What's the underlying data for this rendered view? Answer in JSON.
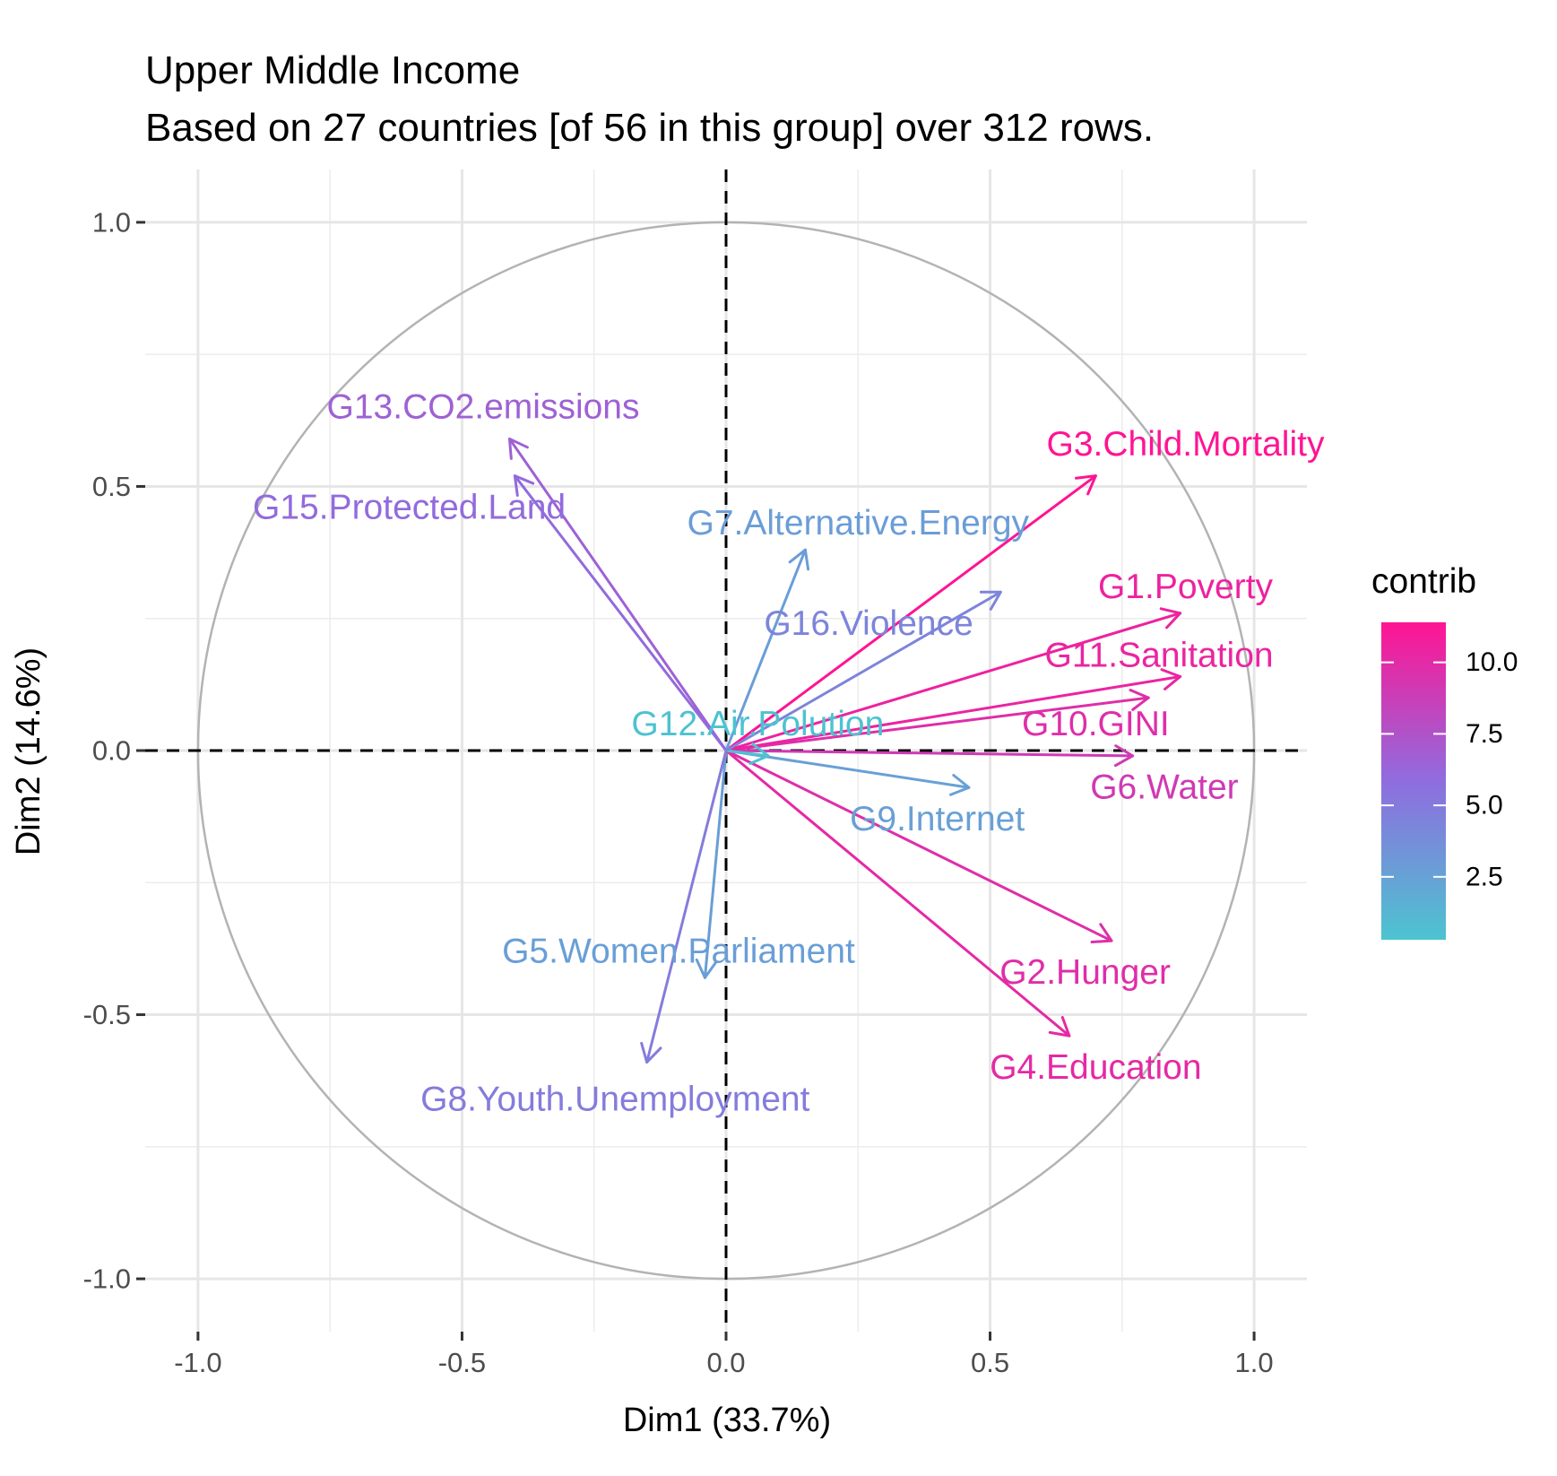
{
  "chart_data": {
    "type": "scatter",
    "subtype": "pca-variables-correlation-circle",
    "title": "Upper Middle Income",
    "subtitle": "Based on 27 countries [of 56 in this group] over 312 rows.",
    "xlabel": "Dim1 (33.7%)",
    "ylabel": "Dim2 (14.6%)",
    "xlim": [
      -1.1,
      1.1
    ],
    "ylim": [
      -1.1,
      1.1
    ],
    "x_ticks": [
      {
        "value": -1.0,
        "label": "-1.0"
      },
      {
        "value": -0.5,
        "label": "-0.5"
      },
      {
        "value": 0.0,
        "label": "0.0"
      },
      {
        "value": 0.5,
        "label": "0.5"
      },
      {
        "value": 1.0,
        "label": "1.0"
      }
    ],
    "y_ticks": [
      {
        "value": 1.0,
        "label": "1.0"
      },
      {
        "value": 0.5,
        "label": "0.5"
      },
      {
        "value": 0.0,
        "label": "0.0"
      },
      {
        "value": -0.5,
        "label": "-0.5"
      },
      {
        "value": -1.0,
        "label": "-1.0"
      }
    ],
    "grid": true,
    "unit_circle": true,
    "legend": {
      "title": "contrib",
      "placement": "right",
      "color_low": "#4cc4d0",
      "color_mid": "#8f6ddf",
      "color_high": "#ff1493",
      "range": [
        0.3,
        11.4
      ],
      "ticks": [
        {
          "value": 10.0,
          "label": "10.0"
        },
        {
          "value": 7.5,
          "label": "7.5"
        },
        {
          "value": 5.0,
          "label": "5.0"
        },
        {
          "value": 2.5,
          "label": "2.5"
        }
      ]
    },
    "variables": [
      {
        "name": "G1.Poverty",
        "x": 0.86,
        "y": 0.26,
        "contrib": 10.5,
        "label_x": 0.87,
        "label_y": 0.31
      },
      {
        "name": "G2.Hunger",
        "x": 0.73,
        "y": -0.36,
        "contrib": 9.8,
        "label_x": 0.68,
        "label_y": -0.42
      },
      {
        "name": "G3.Child.Mortality",
        "x": 0.7,
        "y": 0.52,
        "contrib": 11.4,
        "label_x": 0.87,
        "label_y": 0.58
      },
      {
        "name": "G4.Education",
        "x": 0.65,
        "y": -0.54,
        "contrib": 10.1,
        "label_x": 0.7,
        "label_y": -0.6
      },
      {
        "name": "G5.Women.Parliament",
        "x": -0.04,
        "y": -0.43,
        "contrib": 2.7,
        "label_x": -0.09,
        "label_y": -0.38
      },
      {
        "name": "G6.Water",
        "x": 0.77,
        "y": -0.01,
        "contrib": 9.0,
        "label_x": 0.83,
        "label_y": -0.07
      },
      {
        "name": "G7.Alternative.Energy",
        "x": 0.15,
        "y": 0.38,
        "contrib": 2.8,
        "label_x": 0.25,
        "label_y": 0.43
      },
      {
        "name": "G8.Youth.Unemployment",
        "x": -0.15,
        "y": -0.59,
        "contrib": 4.9,
        "label_x": -0.21,
        "label_y": -0.66
      },
      {
        "name": "G9.Internet",
        "x": 0.46,
        "y": -0.07,
        "contrib": 2.6,
        "label_x": 0.4,
        "label_y": -0.13
      },
      {
        "name": "G10.GINI",
        "x": 0.8,
        "y": 0.1,
        "contrib": 9.8,
        "label_x": 0.7,
        "label_y": 0.05
      },
      {
        "name": "G11.Sanitation",
        "x": 0.86,
        "y": 0.14,
        "contrib": 10.4,
        "label_x": 0.82,
        "label_y": 0.18
      },
      {
        "name": "G12.Air.Polution",
        "x": 0.08,
        "y": -0.01,
        "contrib": 0.4,
        "label_x": 0.06,
        "label_y": 0.05
      },
      {
        "name": "G13.CO2.emissions",
        "x": -0.41,
        "y": 0.59,
        "contrib": 6.6,
        "label_x": -0.46,
        "label_y": 0.65
      },
      {
        "name": "G15.Protected.Land",
        "x": -0.4,
        "y": 0.52,
        "contrib": 6.0,
        "label_x": -0.6,
        "label_y": 0.46
      },
      {
        "name": "G16.Violence",
        "x": 0.52,
        "y": 0.3,
        "contrib": 4.4,
        "label_x": 0.27,
        "label_y": 0.24
      }
    ]
  }
}
